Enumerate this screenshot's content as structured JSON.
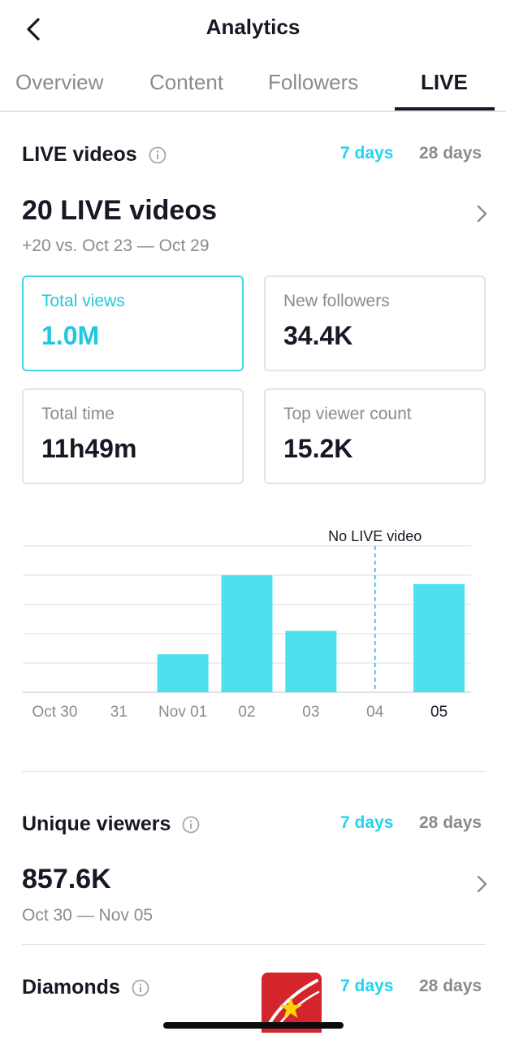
{
  "header": {
    "title": "Analytics"
  },
  "tabs": [
    {
      "label": "Overview",
      "active": false
    },
    {
      "label": "Content",
      "active": false
    },
    {
      "label": "Followers",
      "active": false
    },
    {
      "label": "LIVE",
      "active": true
    }
  ],
  "live_videos": {
    "title": "LIVE videos",
    "range_7": "7 days",
    "range_28": "28 days",
    "selected_range": "7 days",
    "count_label": "20 LIVE videos",
    "comparison": "+20 vs. Oct 23 — Oct 29",
    "cards": [
      {
        "label": "Total views",
        "value": "1.0M",
        "selected": true
      },
      {
        "label": "New followers",
        "value": "34.4K",
        "selected": false
      },
      {
        "label": "Total time",
        "value": "11h49m",
        "selected": false
      },
      {
        "label": "Top viewer count",
        "value": "15.2K",
        "selected": false
      }
    ]
  },
  "chart_data": {
    "type": "bar",
    "categories": [
      "Oct 30",
      "31",
      "Nov 01",
      "02",
      "03",
      "04",
      "05"
    ],
    "values": [
      0,
      0,
      0.26,
      0.8,
      0.42,
      0,
      0.74
    ],
    "value_scale": "relative (no axis values shown)",
    "annotation": {
      "category": "04",
      "text": "No LIVE video"
    },
    "grid": true,
    "bar_color": "#4fe0ee"
  },
  "unique_viewers": {
    "title": "Unique viewers",
    "range_7": "7 days",
    "range_28": "28 days",
    "value": "857.6K",
    "period": "Oct 30 — Nov 05"
  },
  "diamonds": {
    "title": "Diamonds",
    "range_7": "7 days",
    "range_28": "28 days"
  },
  "colors": {
    "accent": "#20d5ec",
    "text": "#161823",
    "muted": "#8a8b91"
  }
}
